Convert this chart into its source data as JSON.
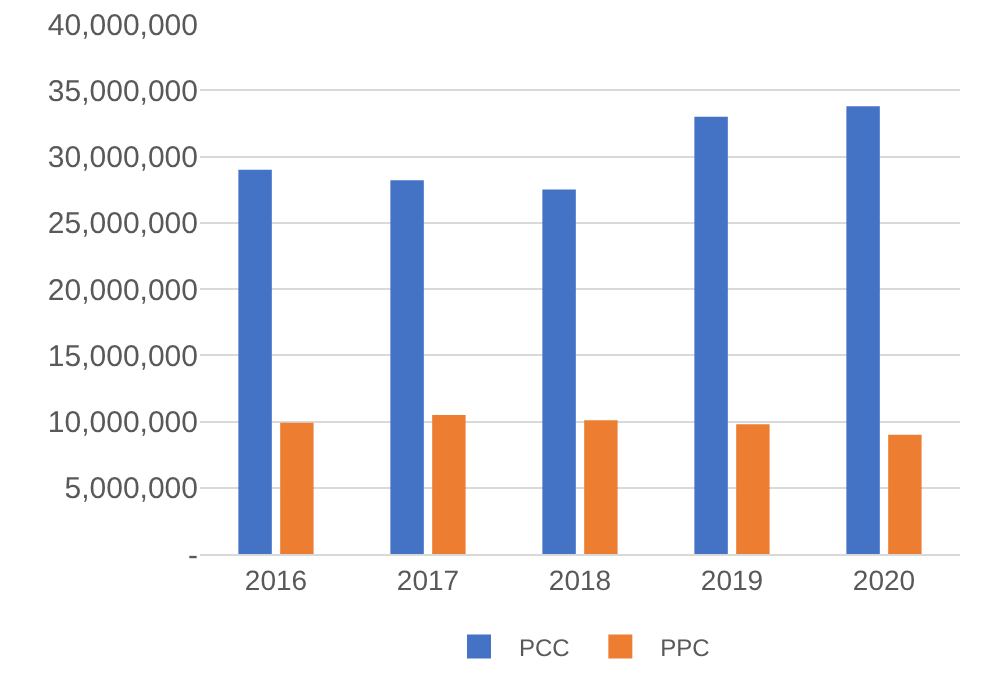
{
  "chart_data": {
    "type": "bar",
    "categories": [
      "2016",
      "2017",
      "2018",
      "2019",
      "2020"
    ],
    "series": [
      {
        "name": "PCC",
        "color": "#4472c4",
        "values": [
          29000000,
          28200000,
          27500000,
          33000000,
          33800000
        ]
      },
      {
        "name": "PPC",
        "color": "#ed7d31",
        "values": [
          9900000,
          10500000,
          10100000,
          9800000,
          9000000
        ]
      }
    ],
    "ylim": [
      0,
      40000000
    ],
    "yticks": [
      {
        "value": 0,
        "label": "-"
      },
      {
        "value": 5000000,
        "label": "5,000,000"
      },
      {
        "value": 10000000,
        "label": "10,000,000"
      },
      {
        "value": 15000000,
        "label": "15,000,000"
      },
      {
        "value": 20000000,
        "label": "20,000,000"
      },
      {
        "value": 25000000,
        "label": "25,000,000"
      },
      {
        "value": 30000000,
        "label": "30,000,000"
      },
      {
        "value": 35000000,
        "label": "35,000,000"
      },
      {
        "value": 40000000,
        "label": "40,000,000"
      }
    ],
    "grid": "y",
    "legend": "bottom"
  }
}
